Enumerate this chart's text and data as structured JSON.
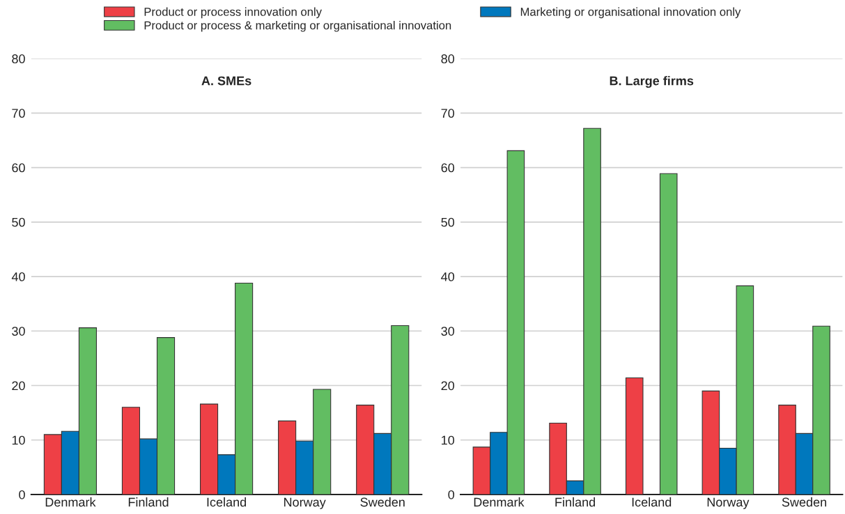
{
  "chart_data": [
    {
      "type": "bar",
      "title": "A. SMEs",
      "categories": [
        "Denmark",
        "Finland",
        "Iceland",
        "Norway",
        "Sweden"
      ],
      "ylim": [
        0,
        80
      ],
      "yticks": [
        0,
        10,
        20,
        30,
        40,
        50,
        60,
        70,
        80
      ],
      "grid": "y",
      "legend": "top",
      "series": [
        {
          "name": "Product or process innovation only",
          "color": "#ee4046",
          "values": [
            11.0,
            16.0,
            16.6,
            13.5,
            16.4
          ]
        },
        {
          "name": "Marketing or organisational innovation only",
          "color": "#0078bd",
          "values": [
            11.6,
            10.2,
            7.3,
            9.8,
            11.2
          ]
        },
        {
          "name": "Product or process & marketing or organisational innovation",
          "color": "#62bd62",
          "values": [
            30.6,
            28.8,
            38.8,
            19.3,
            31.0
          ]
        }
      ]
    },
    {
      "type": "bar",
      "title": "B. Large firms",
      "categories": [
        "Denmark",
        "Finland",
        "Iceland",
        "Norway",
        "Sweden"
      ],
      "ylim": [
        0,
        80
      ],
      "yticks": [
        0,
        10,
        20,
        30,
        40,
        50,
        60,
        70,
        80
      ],
      "grid": "y",
      "series": [
        {
          "color": "#ee4046",
          "values": [
            8.7,
            13.1,
            21.4,
            19.0,
            16.4
          ]
        },
        {
          "color": "#0078bd",
          "values": [
            11.4,
            2.5,
            null,
            8.5,
            11.2
          ]
        },
        {
          "color": "#62bd62",
          "values": [
            63.1,
            67.2,
            58.9,
            38.3,
            30.9
          ]
        }
      ]
    }
  ]
}
